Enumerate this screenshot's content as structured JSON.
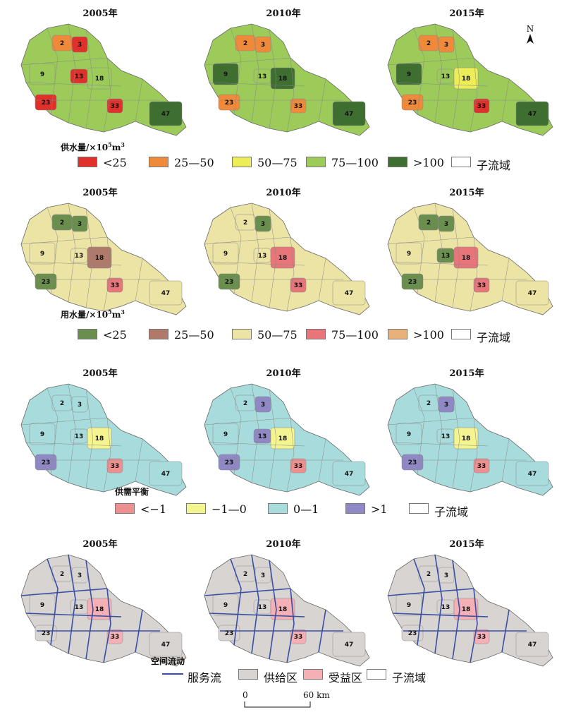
{
  "years": [
    "2005年",
    "2010年",
    "2015年"
  ],
  "rows": [
    {
      "id": "supply",
      "legend_title_main": "供水量/×10",
      "legend_title_sup": "5",
      "legend_title_tail": "m",
      "legend_title_sup2": "3",
      "legend": [
        {
          "label": "<25",
          "color": "#e0302a"
        },
        {
          "label": "25—50",
          "color": "#ef8a3a"
        },
        {
          "label": "50—75",
          "color": "#eded5a"
        },
        {
          "label": "75—100",
          "color": "#9ccb5a"
        },
        {
          "label": ">100",
          "color": "#3e6e30"
        },
        {
          "label": "子流域",
          "color": "#ffffff"
        }
      ],
      "panels": [
        [
          {
            "n": "2",
            "c": "#ef8a3a"
          },
          {
            "n": "3",
            "c": "#e0302a"
          },
          {
            "n": "9",
            "c": "#9ccb5a"
          },
          {
            "n": "13",
            "c": "#e0302a"
          },
          {
            "n": "18",
            "c": "#9ccb5a"
          },
          {
            "n": "23",
            "c": "#e0302a"
          },
          {
            "n": "33",
            "c": "#e0302a"
          },
          {
            "n": "47",
            "c": "#3e6e30"
          }
        ],
        [
          {
            "n": "2",
            "c": "#ef8a3a"
          },
          {
            "n": "3",
            "c": "#ef8a3a"
          },
          {
            "n": "9",
            "c": "#3e6e30"
          },
          {
            "n": "13",
            "c": "#9ccb5a"
          },
          {
            "n": "18",
            "c": "#3e6e30"
          },
          {
            "n": "23",
            "c": "#ef8a3a"
          },
          {
            "n": "33",
            "c": "#ef8a3a"
          },
          {
            "n": "47",
            "c": "#3e6e30"
          }
        ],
        [
          {
            "n": "2",
            "c": "#ef8a3a"
          },
          {
            "n": "3",
            "c": "#ef8a3a"
          },
          {
            "n": "9",
            "c": "#3e6e30"
          },
          {
            "n": "13",
            "c": "#9ccb5a"
          },
          {
            "n": "18",
            "c": "#eded5a"
          },
          {
            "n": "23",
            "c": "#ef8a3a"
          },
          {
            "n": "33",
            "c": "#e0302a"
          },
          {
            "n": "47",
            "c": "#3e6e30"
          }
        ]
      ]
    },
    {
      "id": "demand",
      "legend_title_main": "用水量/×10",
      "legend_title_sup": "5",
      "legend_title_tail": "m",
      "legend_title_sup2": "3",
      "legend": [
        {
          "label": "<25",
          "color": "#6a8e4e"
        },
        {
          "label": "25—50",
          "color": "#b07a6a"
        },
        {
          "label": "50—75",
          "color": "#ece4a4"
        },
        {
          "label": "75—100",
          "color": "#e8757a"
        },
        {
          "label": ">100",
          "color": "#e8b07a"
        },
        {
          "label": "子流域",
          "color": "#ffffff"
        }
      ],
      "panels": [
        [
          {
            "n": "2",
            "c": "#6a8e4e"
          },
          {
            "n": "3",
            "c": "#6a8e4e"
          },
          {
            "n": "9",
            "c": "#ece4a4"
          },
          {
            "n": "13",
            "c": "#ece4a4"
          },
          {
            "n": "18",
            "c": "#b07a6a"
          },
          {
            "n": "23",
            "c": "#6a8e4e"
          },
          {
            "n": "33",
            "c": "#e8757a"
          },
          {
            "n": "47",
            "c": "#ece4a4"
          }
        ],
        [
          {
            "n": "2",
            "c": "#ece4a4"
          },
          {
            "n": "3",
            "c": "#6a8e4e"
          },
          {
            "n": "9",
            "c": "#ece4a4"
          },
          {
            "n": "13",
            "c": "#ece4a4"
          },
          {
            "n": "18",
            "c": "#e8757a"
          },
          {
            "n": "23",
            "c": "#6a8e4e"
          },
          {
            "n": "33",
            "c": "#e8757a"
          },
          {
            "n": "47",
            "c": "#ece4a4"
          }
        ],
        [
          {
            "n": "2",
            "c": "#6a8e4e"
          },
          {
            "n": "3",
            "c": "#6a8e4e"
          },
          {
            "n": "9",
            "c": "#ece4a4"
          },
          {
            "n": "13",
            "c": "#6a8e4e"
          },
          {
            "n": "18",
            "c": "#e8757a"
          },
          {
            "n": "23",
            "c": "#6a8e4e"
          },
          {
            "n": "33",
            "c": "#e8757a"
          },
          {
            "n": "47",
            "c": "#ece4a4"
          }
        ]
      ]
    },
    {
      "id": "balance",
      "legend_title_main": "供需平衡",
      "legend_title_sup": "",
      "legend_title_tail": "",
      "legend_title_sup2": "",
      "legend": [
        {
          "label": "<−1",
          "color": "#ef9090"
        },
        {
          "label": "−1—0",
          "color": "#f4f490"
        },
        {
          "label": "0—1",
          "color": "#a8dcdc"
        },
        {
          "label": ">1",
          "color": "#9088c4"
        },
        {
          "label": "子流域",
          "color": "#ffffff"
        }
      ],
      "panels": [
        [
          {
            "n": "2",
            "c": "#a8dcdc"
          },
          {
            "n": "3",
            "c": "#a8dcdc"
          },
          {
            "n": "9",
            "c": "#a8dcdc"
          },
          {
            "n": "13",
            "c": "#a8dcdc"
          },
          {
            "n": "18",
            "c": "#f4f490"
          },
          {
            "n": "23",
            "c": "#9088c4"
          },
          {
            "n": "33",
            "c": "#ef9090"
          },
          {
            "n": "47",
            "c": "#a8dcdc"
          }
        ],
        [
          {
            "n": "2",
            "c": "#a8dcdc"
          },
          {
            "n": "3",
            "c": "#9088c4"
          },
          {
            "n": "9",
            "c": "#a8dcdc"
          },
          {
            "n": "13",
            "c": "#9088c4"
          },
          {
            "n": "18",
            "c": "#f4f490"
          },
          {
            "n": "23",
            "c": "#9088c4"
          },
          {
            "n": "33",
            "c": "#ef9090"
          },
          {
            "n": "47",
            "c": "#a8dcdc"
          }
        ],
        [
          {
            "n": "2",
            "c": "#a8dcdc"
          },
          {
            "n": "3",
            "c": "#9088c4"
          },
          {
            "n": "9",
            "c": "#a8dcdc"
          },
          {
            "n": "13",
            "c": "#a8dcdc"
          },
          {
            "n": "18",
            "c": "#f4f490"
          },
          {
            "n": "23",
            "c": "#9088c4"
          },
          {
            "n": "33",
            "c": "#ef9090"
          },
          {
            "n": "47",
            "c": "#a8dcdc"
          }
        ]
      ]
    },
    {
      "id": "flow",
      "legend_title_main": "空间流动",
      "legend_title_sup": "",
      "legend_title_tail": "",
      "legend_title_sup2": "",
      "legend": [
        {
          "label": "服务流",
          "color": "#3a4fa3",
          "line": true
        },
        {
          "label": "供给区",
          "color": "#d8d4d2"
        },
        {
          "label": "受益区",
          "color": "#f4b0b4"
        },
        {
          "label": "子流域",
          "color": "#ffffff"
        }
      ],
      "panels": [
        [
          {
            "n": "2",
            "c": "#d8d4d2"
          },
          {
            "n": "3",
            "c": "#d8d4d2"
          },
          {
            "n": "9",
            "c": "#d8d4d2"
          },
          {
            "n": "13",
            "c": "#d8d4d2"
          },
          {
            "n": "18",
            "c": "#f4b0b4"
          },
          {
            "n": "23",
            "c": "#d8d4d2"
          },
          {
            "n": "33",
            "c": "#f4b0b4"
          },
          {
            "n": "47",
            "c": "#d8d4d2"
          }
        ],
        [
          {
            "n": "2",
            "c": "#d8d4d2"
          },
          {
            "n": "3",
            "c": "#d8d4d2"
          },
          {
            "n": "9",
            "c": "#d8d4d2"
          },
          {
            "n": "13",
            "c": "#d8d4d2"
          },
          {
            "n": "18",
            "c": "#f4b0b4"
          },
          {
            "n": "23",
            "c": "#d8d4d2"
          },
          {
            "n": "33",
            "c": "#f4b0b4"
          },
          {
            "n": "47",
            "c": "#d8d4d2"
          }
        ],
        [
          {
            "n": "2",
            "c": "#d8d4d2"
          },
          {
            "n": "3",
            "c": "#d8d4d2"
          },
          {
            "n": "9",
            "c": "#d8d4d2"
          },
          {
            "n": "13",
            "c": "#d8d4d2"
          },
          {
            "n": "18",
            "c": "#f4b0b4"
          },
          {
            "n": "23",
            "c": "#d8d4d2"
          },
          {
            "n": "33",
            "c": "#f4b0b4"
          },
          {
            "n": "47",
            "c": "#d8d4d2"
          }
        ]
      ]
    }
  ],
  "north_label": "N",
  "scale": {
    "start": "0",
    "end": "60 km"
  }
}
